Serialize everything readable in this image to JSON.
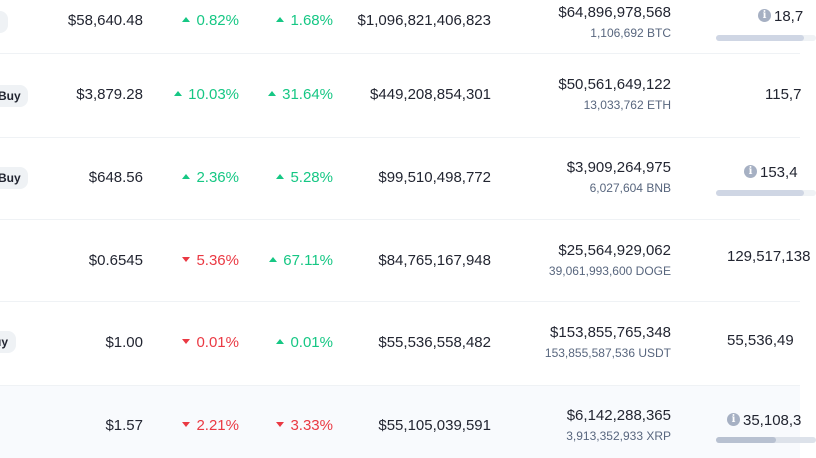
{
  "rows": [
    {
      "buy_label": "",
      "price": "$58,640.48",
      "change_24h": "0.82%",
      "change_24h_dir": "up",
      "change_7d": "1.68%",
      "change_7d_dir": "up",
      "market_cap": "$1,096,821,406,823",
      "volume_usd": "$64,896,978,568",
      "volume_coin": "1,106,692 BTC",
      "supply": "18,7",
      "supply_has_info": true,
      "supply_progress": 0.88
    },
    {
      "buy_label": "Buy",
      "price": "$3,879.28",
      "change_24h": "10.03%",
      "change_24h_dir": "up",
      "change_7d": "31.64%",
      "change_7d_dir": "up",
      "market_cap": "$449,208,854,301",
      "volume_usd": "$50,561,649,122",
      "volume_coin": "13,033,762 ETH",
      "supply": "115,7",
      "supply_has_info": false,
      "supply_progress": null
    },
    {
      "buy_label": "Buy",
      "price": "$648.56",
      "change_24h": "2.36%",
      "change_24h_dir": "up",
      "change_7d": "5.28%",
      "change_7d_dir": "up",
      "market_cap": "$99,510,498,772",
      "volume_usd": "$3,909,264,975",
      "volume_coin": "6,027,604 BNB",
      "supply": "153,4",
      "supply_has_info": true,
      "supply_progress": 0.88
    },
    {
      "buy_label": "",
      "price": "$0.6545",
      "change_24h": "5.36%",
      "change_24h_dir": "down",
      "change_7d": "67.11%",
      "change_7d_dir": "up",
      "market_cap": "$84,765,167,948",
      "volume_usd": "$25,564,929,062",
      "volume_coin": "39,061,993,600 DOGE",
      "supply": "129,517,138",
      "supply_has_info": false,
      "supply_progress": null
    },
    {
      "buy_label": "uy",
      "price": "$1.00",
      "change_24h": "0.01%",
      "change_24h_dir": "down",
      "change_7d": "0.01%",
      "change_7d_dir": "up",
      "market_cap": "$55,536,558,482",
      "volume_usd": "$153,855,765,348",
      "volume_coin": "153,855,587,536 USDT",
      "supply": "55,536,49",
      "supply_has_info": false,
      "supply_progress": null
    },
    {
      "buy_label": "",
      "price": "$1.57",
      "change_24h": "2.21%",
      "change_24h_dir": "down",
      "change_7d": "3.33%",
      "change_7d_dir": "down",
      "market_cap": "$55,105,039,591",
      "volume_usd": "$6,142,288,365",
      "volume_coin": "3,913,352,933 XRP",
      "supply": "35,108,3",
      "supply_has_info": true,
      "supply_progress": 0.6
    }
  ]
}
